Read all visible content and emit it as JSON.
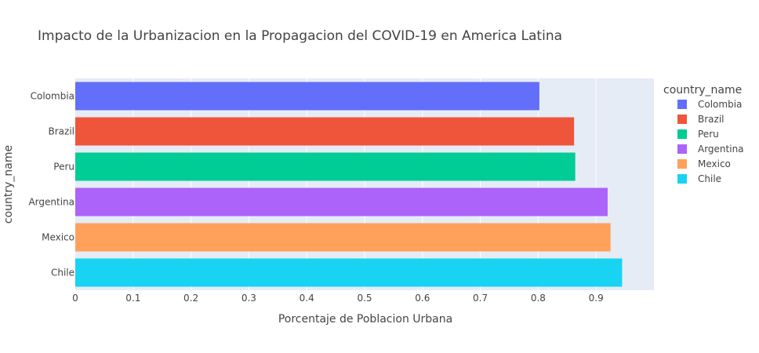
{
  "chart_data": {
    "type": "bar",
    "orientation": "horizontal",
    "title": "Impacto de la Urbanizacion en la Propagacion del COVID-19 en America Latina",
    "xlabel": "Porcentaje de Poblacion Urbana",
    "ylabel": "country_name",
    "xlim": [
      0,
      1.0
    ],
    "x_ticks": [
      "0",
      "0.1",
      "0.2",
      "0.3",
      "0.4",
      "0.5",
      "0.6",
      "0.7",
      "0.8",
      "0.9"
    ],
    "x_tick_values": [
      0,
      0.1,
      0.2,
      0.3,
      0.4,
      0.5,
      0.6,
      0.7,
      0.8,
      0.9
    ],
    "grid": true,
    "legend_title": "country_name",
    "legend_position": "right",
    "series": [
      {
        "name": "Colombia",
        "value": 0.802,
        "color": "#636efa"
      },
      {
        "name": "Brazil",
        "value": 0.862,
        "color": "#ef553b"
      },
      {
        "name": "Peru",
        "value": 0.864,
        "color": "#00cc96"
      },
      {
        "name": "Argentina",
        "value": 0.92,
        "color": "#ab63fa"
      },
      {
        "name": "Mexico",
        "value": 0.925,
        "color": "#ffa15a"
      },
      {
        "name": "Chile",
        "value": 0.945,
        "color": "#19d3f3"
      }
    ]
  }
}
